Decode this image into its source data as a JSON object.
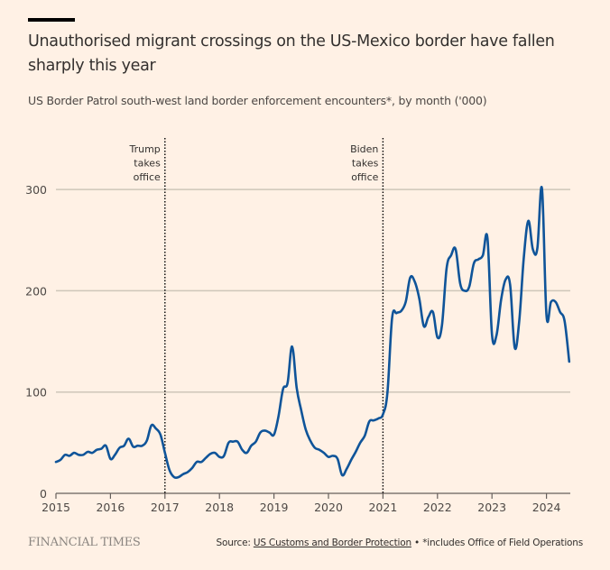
{
  "header": {
    "title": "Unauthorised migrant crossings on the US-Mexico border have fallen sharply this year",
    "subtitle": "US Border Patrol south-west land border enforcement encounters*, by month ('000)"
  },
  "footer": {
    "brand": "FINANCIAL TIMES",
    "source_prefix": "Source: ",
    "source_link": "US Customs and Border Protection",
    "source_note": " • *includes Office of Field Operations"
  },
  "colors": {
    "background": "#FFF1E5",
    "line": "#0F5499",
    "grid": "#CEC6B9",
    "text": "#33302E"
  },
  "chart_data": {
    "type": "line",
    "title": "Unauthorised migrant crossings on the US-Mexico border have fallen sharply this year",
    "subtitle": "US Border Patrol south-west land border enforcement encounters*, by month ('000)",
    "xlabel": "",
    "ylabel": "",
    "x_start": "2015-01",
    "x_frequency": "monthly",
    "xlim": [
      2015,
      2024.45
    ],
    "ylim": [
      0,
      300
    ],
    "y_ticks": [
      0,
      100,
      200,
      300
    ],
    "x_ticks": [
      "2015",
      "2016",
      "2017",
      "2018",
      "2019",
      "2020",
      "2021",
      "2022",
      "2023",
      "2024"
    ],
    "grid": true,
    "legend": "none",
    "series": [
      {
        "name": "Encounters ('000)",
        "values": [
          31,
          33,
          38,
          37,
          40,
          38,
          38,
          41,
          40,
          43,
          44,
          47,
          34,
          38,
          45,
          47,
          54,
          46,
          47,
          47,
          52,
          67,
          64,
          58,
          40,
          23,
          16,
          16,
          19,
          21,
          25,
          31,
          31,
          35,
          39,
          40,
          36,
          37,
          50,
          51,
          51,
          43,
          40,
          47,
          51,
          60,
          62,
          60,
          58,
          76,
          103,
          109,
          145,
          104,
          82,
          63,
          52,
          45,
          43,
          40,
          36,
          37,
          34,
          18,
          24,
          33,
          41,
          50,
          57,
          71,
          72,
          74,
          78,
          100,
          173,
          178,
          180,
          189,
          213,
          209,
          192,
          165,
          174,
          179,
          154,
          166,
          222,
          235,
          241,
          207,
          200,
          204,
          227,
          231,
          235,
          252,
          157,
          156,
          191,
          211,
          206,
          144,
          170,
          232,
          269,
          241,
          242,
          301,
          176,
          189,
          189,
          179,
          170,
          130
        ]
      }
    ],
    "annotations": [
      {
        "x": "2017-01",
        "text": [
          "Trump",
          "takes",
          "office"
        ]
      },
      {
        "x": "2021-01",
        "text": [
          "Biden",
          "takes",
          "office"
        ]
      }
    ]
  }
}
